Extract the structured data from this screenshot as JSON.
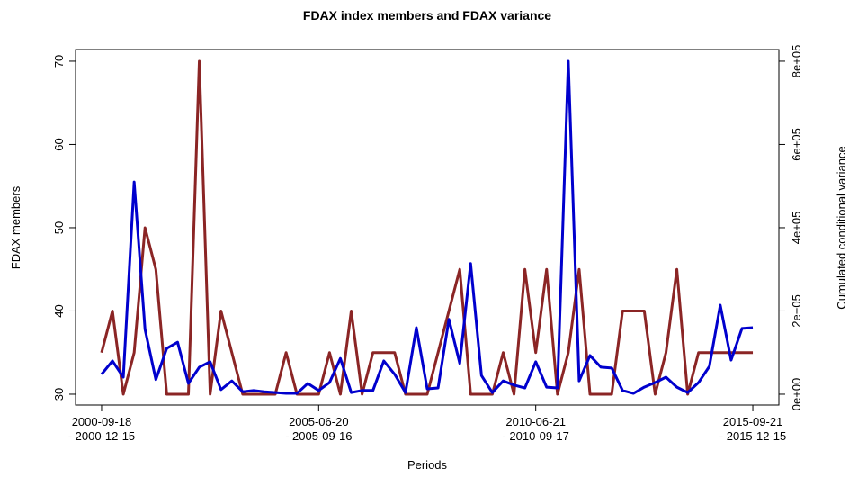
{
  "chart_data": {
    "type": "line",
    "title": "FDAX index members and FDAX variance",
    "x_label": "Periods",
    "y_label": "FDAX members",
    "y2_label": "Cumulated conditional variance",
    "categories": [
      "2000-09-18\n- 2000-12-15",
      null,
      null,
      null,
      null,
      null,
      null,
      null,
      null,
      null,
      null,
      null,
      null,
      null,
      null,
      null,
      null,
      null,
      null,
      null,
      "2005-06-20\n- 2005-09-16",
      null,
      null,
      null,
      null,
      null,
      null,
      null,
      null,
      null,
      null,
      null,
      null,
      null,
      null,
      null,
      null,
      null,
      null,
      null,
      "2010-06-21\n- 2010-09-17",
      null,
      null,
      null,
      null,
      null,
      null,
      null,
      null,
      null,
      null,
      null,
      null,
      null,
      null,
      null,
      null,
      null,
      null,
      null,
      "2015-09-21\n- 2015-12-15"
    ],
    "ylim": [
      28.7,
      71.4
    ],
    "yticks": [
      30,
      40,
      50,
      60,
      70
    ],
    "y2lim": [
      -26000,
      828000
    ],
    "y2ticks": [
      {
        "value": 0,
        "label": "0e+00"
      },
      {
        "value": 200000,
        "label": "2e+05"
      },
      {
        "value": 400000,
        "label": "4e+05"
      },
      {
        "value": 600000,
        "label": "6e+05"
      },
      {
        "value": 800000,
        "label": "8e+05"
      }
    ],
    "series": [
      {
        "name": "FDAX members",
        "color": "#8b2525",
        "values": [
          35,
          40,
          30,
          35,
          50,
          45,
          30,
          30,
          30,
          70,
          30,
          40,
          35,
          30,
          30,
          30,
          30,
          35,
          30,
          30,
          30,
          35,
          30,
          40,
          30,
          35,
          35,
          35,
          30,
          30,
          30,
          35,
          40,
          45,
          30,
          30,
          30,
          35,
          30,
          45,
          35,
          45,
          30,
          35,
          45,
          30,
          30,
          30,
          40,
          40,
          40,
          30,
          35,
          45,
          30,
          35,
          35,
          35,
          35,
          35,
          35
        ]
      },
      {
        "name": "Cumulated conditional variance",
        "color": "#0000cd",
        "axis": "y2",
        "values": [
          48000,
          80000,
          41000,
          510000,
          156000,
          35000,
          110000,
          125000,
          26000,
          65000,
          78000,
          11000,
          32000,
          6000,
          9000,
          6000,
          4000,
          2000,
          2000,
          26000,
          9000,
          28000,
          86000,
          4000,
          9000,
          9000,
          80000,
          48000,
          4000,
          160000,
          13000,
          15000,
          180000,
          74000,
          314000,
          45000,
          4000,
          32000,
          22000,
          15000,
          78000,
          17000,
          15000,
          800000,
          32000,
          93000,
          65000,
          63000,
          9000,
          2000,
          17000,
          28000,
          41000,
          17000,
          4000,
          28000,
          67000,
          214000,
          82000,
          158000,
          160000
        ]
      }
    ]
  }
}
